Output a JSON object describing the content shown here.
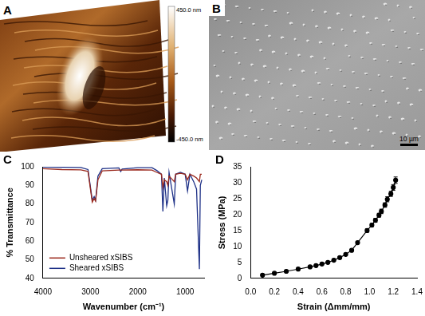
{
  "panels": [
    {
      "panel_label": "A",
      "type": "image",
      "colorbar": {
        "range": [
          -450,
          450
        ],
        "ticks": [
          {
            "value": 450,
            "label": "450.0 nm"
          },
          {
            "value": -450,
            "label": "-450.0 nm"
          }
        ]
      }
    },
    {
      "panel_label": "B",
      "type": "image",
      "scale_bar": {
        "label": "10 µm"
      }
    }
  ],
  "chart_data": [
    {
      "panel_label": "C",
      "type": "line",
      "x_label": "Wavenumber (cm⁻¹)",
      "y_label": "% Transmittance",
      "x": [
        4000,
        3600,
        3200,
        3050,
        2960,
        2920,
        2890,
        2840,
        2750,
        2400,
        2360,
        2330,
        2000,
        1700,
        1600,
        1500,
        1470,
        1440,
        1390,
        1365,
        1340,
        1230,
        1200,
        1100,
        1000,
        950,
        900,
        820,
        760,
        700,
        680,
        650
      ],
      "series": [
        {
          "name": "Unsheared xSIBS",
          "color": "#9b2a1e",
          "values": [
            99,
            98.5,
            98.3,
            97.5,
            81,
            83,
            81.5,
            93,
            97.8,
            98.2,
            98.2,
            98.2,
            98.4,
            98.2,
            97,
            96,
            89,
            93,
            92,
            90,
            95,
            92,
            96,
            96.5,
            96,
            93,
            96,
            95,
            94,
            92,
            96,
            96
          ]
        },
        {
          "name": "Sheared xSIBS",
          "color": "#1c2f86",
          "values": [
            99.8,
            99.7,
            99.6,
            98.5,
            82,
            84,
            82,
            95,
            99,
            99.4,
            97.5,
            98.8,
            99.5,
            99.5,
            98,
            96,
            76,
            94,
            79,
            82,
            97,
            80,
            96,
            97,
            96,
            87,
            96,
            92,
            88,
            45,
            90,
            93
          ]
        }
      ],
      "xlim": [
        4000,
        600
      ],
      "xticks": [
        4000,
        3000,
        2000,
        1000
      ],
      "ylim": [
        40,
        100
      ],
      "yticks": [
        40,
        50,
        60,
        70,
        80,
        90,
        100
      ],
      "grid": false,
      "legend": "lower left",
      "line_style": "solid"
    },
    {
      "panel_label": "D",
      "type": "line",
      "x_label": "Strain (Δmm/mm)",
      "y_label": "Stress (MPa)",
      "x": [
        0.1,
        0.2,
        0.3,
        0.4,
        0.5,
        0.55,
        0.6,
        0.65,
        0.7,
        0.75,
        0.8,
        0.85,
        0.9,
        0.98,
        1.02,
        1.05,
        1.08,
        1.1,
        1.13,
        1.15,
        1.18,
        1.2,
        1.22
      ],
      "values": [
        1.0,
        1.6,
        2.2,
        2.9,
        3.6,
        4.0,
        4.5,
        5.0,
        5.7,
        6.5,
        7.5,
        8.8,
        11.2,
        15.0,
        16.7,
        18.2,
        19.8,
        21.0,
        23.0,
        24.8,
        26.5,
        28.5,
        30.8
      ],
      "errors": [
        0.2,
        0.2,
        0.2,
        0.2,
        0.2,
        0.2,
        0.2,
        0.2,
        0.3,
        0.3,
        0.3,
        0.3,
        0.4,
        0.5,
        0.5,
        0.6,
        0.6,
        0.7,
        0.7,
        0.8,
        0.8,
        0.9,
        1.0
      ],
      "color": "#000000",
      "marker": "circle",
      "line_style": "solid",
      "xlim": [
        0,
        1.4
      ],
      "xticks": [
        {
          "value": 0,
          "label": "0.0"
        },
        0.2,
        0.4,
        0.6,
        0.8,
        {
          "value": 1,
          "label": "1.0"
        },
        1.2,
        1.4
      ],
      "ylim": [
        0,
        35
      ],
      "yticks": [
        0,
        5,
        10,
        15,
        20,
        25,
        30,
        35
      ],
      "grid": false
    }
  ]
}
